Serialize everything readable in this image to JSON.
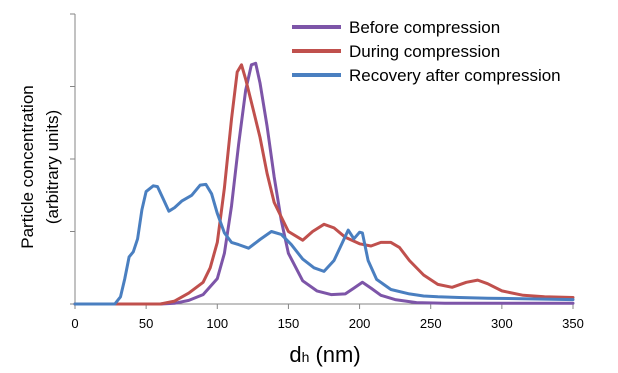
{
  "chart_data": {
    "type": "line",
    "title": "",
    "xlabel_main": "d",
    "xlabel_sub": "h",
    "xlabel_unit": " (nm)",
    "ylabel_line1": "Particle concentration",
    "ylabel_line2": "(arbitrary units)",
    "xlim": [
      0,
      350
    ],
    "xticks": [
      0,
      50,
      100,
      150,
      200,
      250,
      300,
      350
    ],
    "ylim": [
      0,
      4
    ],
    "yticks": [
      0,
      1,
      2,
      3,
      4
    ],
    "grid": false,
    "legend_position": "top-right",
    "series": [
      {
        "name": "Before compression",
        "color": "#7d55a8",
        "points": [
          [
            0,
            0
          ],
          [
            60,
            0
          ],
          [
            70,
            0.01
          ],
          [
            80,
            0.05
          ],
          [
            90,
            0.13
          ],
          [
            100,
            0.35
          ],
          [
            105,
            0.7
          ],
          [
            110,
            1.35
          ],
          [
            115,
            2.2
          ],
          [
            120,
            2.95
          ],
          [
            124,
            3.3
          ],
          [
            127,
            3.32
          ],
          [
            130,
            3.05
          ],
          [
            135,
            2.45
          ],
          [
            140,
            1.75
          ],
          [
            145,
            1.15
          ],
          [
            150,
            0.7
          ],
          [
            160,
            0.32
          ],
          [
            170,
            0.18
          ],
          [
            180,
            0.13
          ],
          [
            190,
            0.14
          ],
          [
            196,
            0.22
          ],
          [
            202,
            0.3
          ],
          [
            208,
            0.22
          ],
          [
            215,
            0.12
          ],
          [
            225,
            0.06
          ],
          [
            240,
            0.02
          ],
          [
            260,
            0.01
          ],
          [
            350,
            0.01
          ]
        ]
      },
      {
        "name": "During compression",
        "color": "#c0504d",
        "points": [
          [
            0,
            0
          ],
          [
            60,
            0
          ],
          [
            70,
            0.04
          ],
          [
            80,
            0.15
          ],
          [
            90,
            0.3
          ],
          [
            95,
            0.5
          ],
          [
            100,
            0.85
          ],
          [
            105,
            1.6
          ],
          [
            110,
            2.55
          ],
          [
            114,
            3.2
          ],
          [
            117,
            3.3
          ],
          [
            120,
            3.1
          ],
          [
            125,
            2.7
          ],
          [
            130,
            2.3
          ],
          [
            135,
            1.8
          ],
          [
            140,
            1.4
          ],
          [
            150,
            1.0
          ],
          [
            160,
            0.88
          ],
          [
            167,
            1.0
          ],
          [
            175,
            1.1
          ],
          [
            182,
            1.05
          ],
          [
            190,
            0.92
          ],
          [
            200,
            0.83
          ],
          [
            208,
            0.8
          ],
          [
            215,
            0.85
          ],
          [
            222,
            0.85
          ],
          [
            228,
            0.78
          ],
          [
            235,
            0.6
          ],
          [
            245,
            0.4
          ],
          [
            255,
            0.27
          ],
          [
            265,
            0.23
          ],
          [
            275,
            0.3
          ],
          [
            283,
            0.33
          ],
          [
            290,
            0.28
          ],
          [
            300,
            0.18
          ],
          [
            315,
            0.12
          ],
          [
            330,
            0.1
          ],
          [
            350,
            0.09
          ]
        ]
      },
      {
        "name": "Recovery after compression",
        "color": "#4a7fc0",
        "points": [
          [
            0,
            0
          ],
          [
            28,
            0
          ],
          [
            32,
            0.1
          ],
          [
            35,
            0.35
          ],
          [
            38,
            0.65
          ],
          [
            41,
            0.72
          ],
          [
            44,
            0.9
          ],
          [
            47,
            1.3
          ],
          [
            50,
            1.55
          ],
          [
            55,
            1.63
          ],
          [
            58,
            1.62
          ],
          [
            62,
            1.45
          ],
          [
            66,
            1.28
          ],
          [
            70,
            1.33
          ],
          [
            75,
            1.42
          ],
          [
            82,
            1.5
          ],
          [
            88,
            1.64
          ],
          [
            92,
            1.65
          ],
          [
            96,
            1.52
          ],
          [
            100,
            1.25
          ],
          [
            105,
            0.98
          ],
          [
            110,
            0.85
          ],
          [
            115,
            0.82
          ],
          [
            122,
            0.77
          ],
          [
            130,
            0.89
          ],
          [
            138,
            1.0
          ],
          [
            145,
            0.96
          ],
          [
            152,
            0.82
          ],
          [
            160,
            0.62
          ],
          [
            168,
            0.5
          ],
          [
            175,
            0.45
          ],
          [
            182,
            0.6
          ],
          [
            188,
            0.85
          ],
          [
            192,
            1.02
          ],
          [
            196,
            0.9
          ],
          [
            200,
            0.99
          ],
          [
            202,
            0.98
          ],
          [
            206,
            0.6
          ],
          [
            212,
            0.34
          ],
          [
            222,
            0.2
          ],
          [
            235,
            0.14
          ],
          [
            245,
            0.11
          ],
          [
            255,
            0.1
          ],
          [
            270,
            0.09
          ],
          [
            290,
            0.08
          ],
          [
            320,
            0.07
          ],
          [
            350,
            0.06
          ]
        ]
      }
    ]
  }
}
